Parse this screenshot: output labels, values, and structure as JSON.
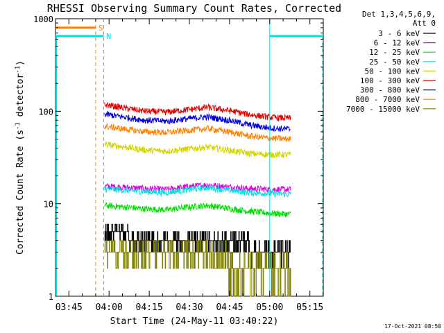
{
  "chart_data": {
    "type": "line",
    "title": "RHESSI Observing Summary Count Rates, Corrected",
    "xlabel": "Start Time (24-May-11 03:40:22)",
    "ylabel_main": "Corrected Count Rate (s",
    "ylabel_exp1": "-1",
    "ylabel_mid": " detector",
    "ylabel_exp2": "-1",
    "ylabel_end": ")",
    "yscale": "log",
    "ylim": [
      1,
      1000
    ],
    "xlim_minutes": [
      0,
      100
    ],
    "x_ticks": [
      {
        "label": "03:45",
        "t": 5
      },
      {
        "label": "04:00",
        "t": 20
      },
      {
        "label": "04:15",
        "t": 35
      },
      {
        "label": "04:30",
        "t": 50
      },
      {
        "label": "04:45",
        "t": 65
      },
      {
        "label": "05:00",
        "t": 80
      },
      {
        "label": "05:15",
        "t": 95
      }
    ],
    "y_ticks": [
      {
        "label": "1",
        "v": 1
      },
      {
        "label": "10",
        "v": 10
      },
      {
        "label": "100",
        "v": 100
      },
      {
        "label": "1000",
        "v": 1000
      }
    ],
    "legend_header": [
      "Det 1,3,4,5,6,9,",
      "Att 0"
    ],
    "legend_placement": "right",
    "timestamp": "17-Oct-2021 08:50",
    "data_start_t": 18.3,
    "data_end_t": 87.8,
    "series": [
      {
        "name": "3 - 6 keV",
        "color": "#000000",
        "noisy": true,
        "values": [
          5,
          4.6,
          4.0,
          3.9,
          3.7,
          3.6,
          3.6,
          3.5,
          3.4,
          3.3
        ]
      },
      {
        "name": "6 - 12 keV",
        "color": "#e000e0",
        "values": [
          15.5,
          15.0,
          14.6,
          14.3,
          15.3,
          16.0,
          15.2,
          14.6,
          14.3,
          14.3
        ]
      },
      {
        "name": "12 - 25 keV",
        "color": "#00e000",
        "values": [
          9.6,
          9.2,
          8.8,
          8.6,
          9.2,
          9.6,
          8.9,
          8.3,
          7.9,
          7.7
        ]
      },
      {
        "name": "25 - 50 keV",
        "color": "#00e0e0",
        "values": [
          14.5,
          14.0,
          13.5,
          13.2,
          14.2,
          15.0,
          14.0,
          13.2,
          12.9,
          12.7
        ]
      },
      {
        "name": "50 - 100 keV",
        "color": "#d4d400",
        "values": [
          44,
          41,
          38,
          37,
          39,
          41,
          38,
          35,
          34,
          34
        ]
      },
      {
        "name": "100 - 300 keV",
        "color": "#e00000",
        "values": [
          118,
          108,
          100,
          98,
          104,
          110,
          102,
          92,
          86,
          84
        ]
      },
      {
        "name": "300 - 800 keV",
        "color": "#0000e0",
        "values": [
          93,
          86,
          80,
          78,
          83,
          87,
          80,
          71,
          66,
          64
        ]
      },
      {
        "name": "800 - 7000 keV",
        "color": "#ff8000",
        "values": [
          69,
          64,
          60,
          59,
          62,
          65,
          60,
          54,
          51,
          50
        ]
      },
      {
        "name": "7000 - 15000 keV",
        "color": "#808000",
        "noisy": true,
        "values": [
          2.7,
          2.6,
          2.6,
          2.5,
          2.5,
          2.5,
          2.5,
          2.4,
          2.4,
          2.4
        ]
      }
    ],
    "state_lines": [
      {
        "label": "S",
        "color": "#ff8000",
        "level": 800,
        "t_end": 15.0
      },
      {
        "label": "N",
        "color": "#00e0e0",
        "level": 650,
        "t_end": 18.0,
        "t_resume": 80.0
      }
    ]
  }
}
